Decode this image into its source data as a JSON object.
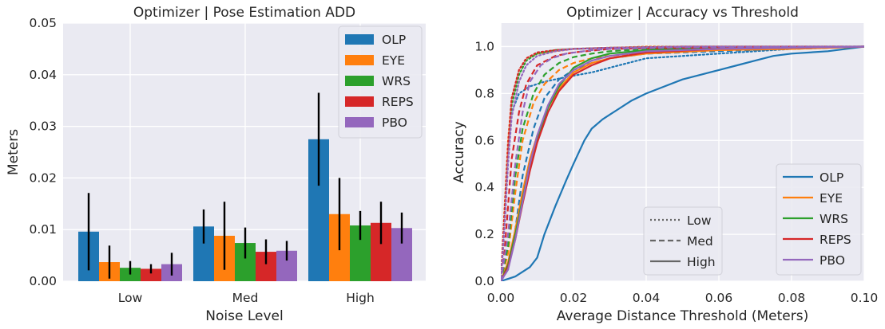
{
  "chart_data": [
    {
      "type": "bar",
      "title": "Optimizer | Pose Estimation ADD",
      "xlabel": "Noise Level",
      "ylabel": "Meters",
      "ylim": [
        0,
        0.05
      ],
      "yticks": [
        0,
        0.01,
        0.02,
        0.03,
        0.04,
        0.05
      ],
      "ytick_labels": [
        "0.00",
        "0.01",
        "0.02",
        "0.03",
        "0.04",
        "0.05"
      ],
      "categories": [
        "Low",
        "Med",
        "High"
      ],
      "legend_position": "top-right",
      "series": [
        {
          "name": "OLP",
          "color": "#1f77b4",
          "values": [
            0.0096,
            0.0106,
            0.0275
          ],
          "errors": [
            0.0075,
            0.0033,
            0.009
          ]
        },
        {
          "name": "EYE",
          "color": "#ff7f0e",
          "values": [
            0.0037,
            0.0088,
            0.013
          ],
          "errors": [
            0.0032,
            0.0066,
            0.007
          ]
        },
        {
          "name": "WRS",
          "color": "#2ca02c",
          "values": [
            0.0026,
            0.0074,
            0.0108
          ],
          "errors": [
            0.0013,
            0.003,
            0.0028
          ]
        },
        {
          "name": "REPS",
          "color": "#d62728",
          "values": [
            0.0024,
            0.0057,
            0.0113
          ],
          "errors": [
            0.0009,
            0.0024,
            0.0041
          ]
        },
        {
          "name": "PBO",
          "color": "#9467bd",
          "values": [
            0.0033,
            0.0059,
            0.0103
          ],
          "errors": [
            0.0022,
            0.0019,
            0.003
          ]
        }
      ]
    },
    {
      "type": "line",
      "title": "Optimizer | Accuracy vs Threshold",
      "xlabel": "Average Distance Threshold (Meters)",
      "ylabel": "Accuracy",
      "xlim": [
        0,
        0.1
      ],
      "ylim": [
        0,
        1.1
      ],
      "xticks": [
        0,
        0.02,
        0.04,
        0.06,
        0.08,
        0.1
      ],
      "xtick_labels": [
        "0.00",
        "0.02",
        "0.04",
        "0.06",
        "0.08",
        "0.10"
      ],
      "yticks": [
        0,
        0.2,
        0.4,
        0.6,
        0.8,
        1.0
      ],
      "ytick_labels": [
        "0.0",
        "0.2",
        "0.4",
        "0.6",
        "0.8",
        "1.0"
      ],
      "style_legend": {
        "position": "bottom-center",
        "entries": [
          {
            "label": "Low",
            "dash": "dotted"
          },
          {
            "label": "Med",
            "dash": "dashed"
          },
          {
            "label": "High",
            "dash": "solid"
          }
        ]
      },
      "color_legend": {
        "position": "bottom-right",
        "entries": [
          {
            "label": "OLP",
            "color": "#1f77b4"
          },
          {
            "label": "EYE",
            "color": "#ff7f0e"
          },
          {
            "label": "WRS",
            "color": "#2ca02c"
          },
          {
            "label": "REPS",
            "color": "#d62728"
          },
          {
            "label": "PBO",
            "color": "#9467bd"
          }
        ]
      },
      "series": [
        {
          "name": "OLP",
          "level": "Low",
          "color": "#1f77b4",
          "dash": "dotted",
          "x": [
            0,
            0.001,
            0.002,
            0.003,
            0.005,
            0.008,
            0.012,
            0.018,
            0.025,
            0.03,
            0.04,
            0.06,
            0.08,
            0.1
          ],
          "y": [
            0,
            0.25,
            0.55,
            0.72,
            0.8,
            0.83,
            0.85,
            0.87,
            0.89,
            0.91,
            0.95,
            0.97,
            0.99,
            1.0
          ]
        },
        {
          "name": "OLP",
          "level": "Med",
          "color": "#1f77b4",
          "dash": "dashed",
          "x": [
            0,
            0.002,
            0.004,
            0.006,
            0.009,
            0.012,
            0.016,
            0.02,
            0.025,
            0.03,
            0.04,
            0.06,
            0.08,
            0.1
          ],
          "y": [
            0,
            0.05,
            0.22,
            0.45,
            0.65,
            0.78,
            0.86,
            0.9,
            0.93,
            0.95,
            0.97,
            0.98,
            0.99,
            1.0
          ]
        },
        {
          "name": "OLP",
          "level": "High",
          "color": "#1f77b4",
          "dash": "solid",
          "x": [
            0,
            0.004,
            0.008,
            0.01,
            0.012,
            0.015,
            0.018,
            0.02,
            0.023,
            0.025,
            0.028,
            0.032,
            0.036,
            0.04,
            0.045,
            0.05,
            0.055,
            0.06,
            0.065,
            0.07,
            0.075,
            0.08,
            0.09,
            0.1
          ],
          "y": [
            0,
            0.02,
            0.06,
            0.1,
            0.2,
            0.32,
            0.43,
            0.5,
            0.6,
            0.65,
            0.69,
            0.73,
            0.77,
            0.8,
            0.83,
            0.86,
            0.88,
            0.9,
            0.92,
            0.94,
            0.96,
            0.97,
            0.98,
            1.0
          ]
        },
        {
          "name": "EYE",
          "level": "Low",
          "color": "#ff7f0e",
          "dash": "dotted",
          "x": [
            0,
            0.001,
            0.002,
            0.003,
            0.005,
            0.007,
            0.01,
            0.015,
            0.02,
            0.03,
            0.04,
            0.06,
            0.1
          ],
          "y": [
            0,
            0.3,
            0.6,
            0.78,
            0.9,
            0.95,
            0.97,
            0.98,
            0.99,
            0.995,
            1.0,
            1.0,
            1.0
          ]
        },
        {
          "name": "EYE",
          "level": "Med",
          "color": "#ff7f0e",
          "dash": "dashed",
          "x": [
            0,
            0.002,
            0.004,
            0.006,
            0.009,
            0.012,
            0.016,
            0.02,
            0.025,
            0.03,
            0.04,
            0.06,
            0.08,
            0.1
          ],
          "y": [
            0,
            0.12,
            0.38,
            0.6,
            0.76,
            0.84,
            0.9,
            0.93,
            0.95,
            0.96,
            0.975,
            0.985,
            0.99,
            1.0
          ]
        },
        {
          "name": "EYE",
          "level": "High",
          "color": "#ff7f0e",
          "dash": "solid",
          "x": [
            0,
            0.002,
            0.004,
            0.006,
            0.008,
            0.01,
            0.013,
            0.016,
            0.02,
            0.025,
            0.03,
            0.04,
            0.06,
            0.08,
            0.1
          ],
          "y": [
            0,
            0.08,
            0.22,
            0.38,
            0.52,
            0.62,
            0.74,
            0.82,
            0.89,
            0.93,
            0.95,
            0.97,
            0.985,
            0.99,
            1.0
          ]
        },
        {
          "name": "WRS",
          "level": "Low",
          "color": "#2ca02c",
          "dash": "dotted",
          "x": [
            0,
            0.001,
            0.002,
            0.003,
            0.005,
            0.007,
            0.01,
            0.015,
            0.02,
            0.03,
            0.05,
            0.1
          ],
          "y": [
            0,
            0.25,
            0.55,
            0.75,
            0.88,
            0.94,
            0.97,
            0.985,
            0.99,
            0.995,
            1.0,
            1.0
          ]
        },
        {
          "name": "WRS",
          "level": "Med",
          "color": "#2ca02c",
          "dash": "dashed",
          "x": [
            0,
            0.002,
            0.004,
            0.006,
            0.009,
            0.012,
            0.016,
            0.02,
            0.025,
            0.03,
            0.04,
            0.06,
            0.1
          ],
          "y": [
            0,
            0.15,
            0.45,
            0.65,
            0.8,
            0.88,
            0.93,
            0.955,
            0.97,
            0.98,
            0.99,
            0.995,
            1.0
          ]
        },
        {
          "name": "WRS",
          "level": "High",
          "color": "#2ca02c",
          "dash": "solid",
          "x": [
            0,
            0.002,
            0.004,
            0.006,
            0.008,
            0.01,
            0.013,
            0.016,
            0.02,
            0.025,
            0.03,
            0.04,
            0.06,
            0.1
          ],
          "y": [
            0,
            0.07,
            0.2,
            0.35,
            0.5,
            0.61,
            0.74,
            0.83,
            0.91,
            0.95,
            0.97,
            0.985,
            0.995,
            1.0
          ]
        },
        {
          "name": "REPS",
          "level": "Low",
          "color": "#d62728",
          "dash": "dotted",
          "x": [
            0,
            0.001,
            0.002,
            0.003,
            0.005,
            0.007,
            0.01,
            0.015,
            0.02,
            0.03,
            0.05,
            0.1
          ],
          "y": [
            0,
            0.28,
            0.58,
            0.78,
            0.9,
            0.95,
            0.975,
            0.985,
            0.99,
            0.995,
            1.0,
            1.0
          ]
        },
        {
          "name": "REPS",
          "level": "Med",
          "color": "#d62728",
          "dash": "dashed",
          "x": [
            0,
            0.001,
            0.002,
            0.003,
            0.005,
            0.007,
            0.01,
            0.015,
            0.02,
            0.03,
            0.05,
            0.1
          ],
          "y": [
            0,
            0.12,
            0.32,
            0.52,
            0.72,
            0.84,
            0.92,
            0.96,
            0.975,
            0.99,
            0.995,
            1.0
          ]
        },
        {
          "name": "REPS",
          "level": "High",
          "color": "#d62728",
          "dash": "solid",
          "x": [
            0,
            0.002,
            0.004,
            0.006,
            0.008,
            0.01,
            0.013,
            0.016,
            0.02,
            0.025,
            0.03,
            0.04,
            0.06,
            0.1
          ],
          "y": [
            0,
            0.06,
            0.18,
            0.33,
            0.47,
            0.59,
            0.72,
            0.81,
            0.88,
            0.92,
            0.95,
            0.975,
            0.99,
            1.0
          ]
        },
        {
          "name": "PBO",
          "level": "Low",
          "color": "#9467bd",
          "dash": "dotted",
          "x": [
            0,
            0.001,
            0.002,
            0.003,
            0.005,
            0.007,
            0.01,
            0.015,
            0.02,
            0.03,
            0.05,
            0.1
          ],
          "y": [
            0,
            0.22,
            0.5,
            0.7,
            0.85,
            0.92,
            0.96,
            0.98,
            0.99,
            0.995,
            1.0,
            1.0
          ]
        },
        {
          "name": "PBO",
          "level": "Med",
          "color": "#9467bd",
          "dash": "dashed",
          "x": [
            0,
            0.002,
            0.004,
            0.006,
            0.008,
            0.011,
            0.014,
            0.018,
            0.025,
            0.03,
            0.05,
            0.1
          ],
          "y": [
            0,
            0.2,
            0.5,
            0.72,
            0.85,
            0.92,
            0.95,
            0.97,
            0.985,
            0.99,
            0.997,
            1.0
          ]
        },
        {
          "name": "PBO",
          "level": "High",
          "color": "#9467bd",
          "dash": "solid",
          "x": [
            0,
            0.002,
            0.004,
            0.006,
            0.008,
            0.01,
            0.013,
            0.016,
            0.02,
            0.025,
            0.03,
            0.04,
            0.06,
            0.1
          ],
          "y": [
            0,
            0.05,
            0.18,
            0.34,
            0.5,
            0.62,
            0.75,
            0.84,
            0.9,
            0.94,
            0.96,
            0.98,
            0.99,
            1.0
          ]
        }
      ]
    }
  ]
}
